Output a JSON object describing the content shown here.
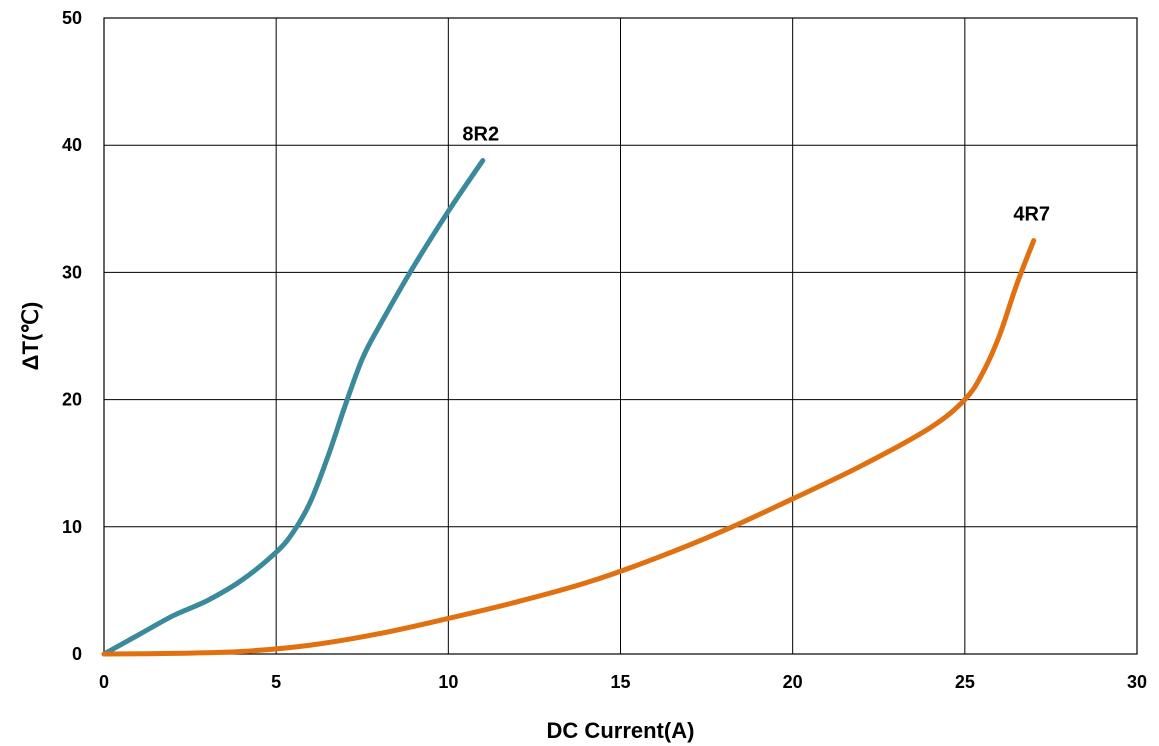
{
  "chart_data": {
    "type": "line",
    "title": "",
    "xlabel": "DC Current(A)",
    "ylabel": "ΔT(℃)",
    "xlim": [
      0,
      30
    ],
    "ylim": [
      0,
      50
    ],
    "xticks": [
      0,
      5,
      10,
      15,
      20,
      25,
      30
    ],
    "yticks": [
      0,
      10,
      20,
      30,
      40,
      50
    ],
    "grid": true,
    "legend": "none",
    "series": [
      {
        "name": "8R2",
        "color": "#3a8a9c",
        "x": [
          0,
          1,
          2,
          3,
          4,
          5,
          5.5,
          6,
          6.5,
          7,
          7.5,
          8,
          9,
          10,
          11
        ],
        "y": [
          0,
          1.5,
          3.0,
          4.2,
          5.8,
          8.0,
          9.6,
          12.0,
          15.5,
          19.5,
          23.2,
          25.8,
          30.5,
          34.8,
          38.8
        ]
      },
      {
        "name": "4R7",
        "color": "#e07010",
        "x": [
          0,
          2,
          4,
          6,
          8,
          10,
          12,
          14,
          16,
          18,
          20,
          22,
          24,
          25,
          25.5,
          26,
          26.5,
          27
        ],
        "y": [
          0,
          0.05,
          0.2,
          0.7,
          1.6,
          2.8,
          4.1,
          5.6,
          7.5,
          9.7,
          12.2,
          14.8,
          17.8,
          20.0,
          22.0,
          25.0,
          29.0,
          32.5
        ]
      }
    ]
  }
}
